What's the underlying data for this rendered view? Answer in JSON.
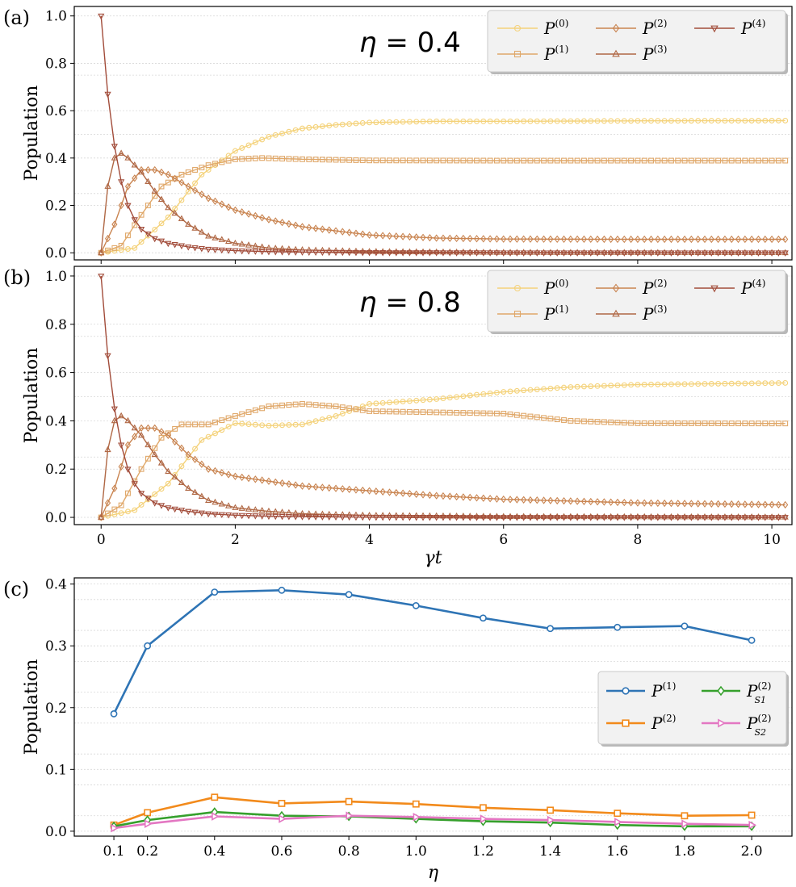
{
  "chart_data": [
    {
      "type": "line",
      "panel_label": "(a)",
      "annotation_symbol": "η",
      "annotation_value": "= 0.4",
      "ylabel": "Population",
      "xlabel": "",
      "xlim": [
        -0.4,
        10.3
      ],
      "ylim": [
        -0.03,
        1.04
      ],
      "xticks": [
        0,
        2,
        4,
        6,
        8,
        10
      ],
      "yticks": [
        "0.0",
        "0.2",
        "0.4",
        "0.6",
        "0.8",
        "1.0"
      ],
      "grid": "y-dotted",
      "legend_position": "top-right",
      "series": [
        {
          "name": "P",
          "sup": "(0)",
          "color": "#f4d27a",
          "marker": "circle",
          "t": [
            0,
            0.5,
            1,
            1.5,
            2,
            2.5,
            3,
            3.5,
            4,
            5,
            6,
            8,
            10.2
          ],
          "v": [
            0,
            0.02,
            0.15,
            0.33,
            0.43,
            0.49,
            0.525,
            0.54,
            0.55,
            0.555,
            0.555,
            0.557,
            0.558
          ]
        },
        {
          "name": "P",
          "sup": "(1)",
          "color": "#e0a86a",
          "marker": "square",
          "t": [
            0,
            0.3,
            0.6,
            0.9,
            1.2,
            1.6,
            2,
            2.4,
            3,
            4,
            6,
            8,
            10.2
          ],
          "v": [
            0,
            0.03,
            0.16,
            0.28,
            0.33,
            0.37,
            0.395,
            0.4,
            0.395,
            0.39,
            0.389,
            0.389,
            0.389
          ]
        },
        {
          "name": "P",
          "sup": "(2)",
          "color": "#c98450",
          "marker": "diamond",
          "t": [
            0,
            0.2,
            0.4,
            0.6,
            0.8,
            1,
            1.3,
            1.6,
            2,
            2.5,
            3,
            4,
            5,
            6,
            8,
            10.2
          ],
          "v": [
            0,
            0.12,
            0.28,
            0.35,
            0.35,
            0.33,
            0.28,
            0.23,
            0.18,
            0.14,
            0.11,
            0.075,
            0.062,
            0.058,
            0.057,
            0.057
          ]
        },
        {
          "name": "P",
          "sup": "(3)",
          "color": "#b06845",
          "marker": "triangle-up",
          "t": [
            0,
            0.1,
            0.2,
            0.3,
            0.4,
            0.6,
            0.8,
            1,
            1.3,
            1.6,
            2,
            2.5,
            3,
            4,
            6,
            10.2
          ],
          "v": [
            0,
            0.28,
            0.4,
            0.42,
            0.4,
            0.34,
            0.26,
            0.19,
            0.12,
            0.07,
            0.04,
            0.02,
            0.012,
            0.005,
            0.001,
            0
          ]
        },
        {
          "name": "P",
          "sup": "(4)",
          "color": "#a24c3a",
          "marker": "triangle-down",
          "t": [
            0,
            0.1,
            0.2,
            0.3,
            0.4,
            0.5,
            0.6,
            0.8,
            1,
            1.3,
            1.6,
            2,
            2.5,
            3,
            4,
            6,
            10.2
          ],
          "v": [
            1,
            0.67,
            0.45,
            0.3,
            0.2,
            0.14,
            0.1,
            0.06,
            0.04,
            0.025,
            0.015,
            0.009,
            0.005,
            0.003,
            0.001,
            0,
            0
          ]
        }
      ]
    },
    {
      "type": "line",
      "panel_label": "(b)",
      "annotation_symbol": "η",
      "annotation_value": "= 0.8",
      "ylabel": "Population",
      "xlabel": "γt",
      "xlim": [
        -0.4,
        10.3
      ],
      "ylim": [
        -0.03,
        1.04
      ],
      "xticks": [
        0,
        2,
        4,
        6,
        8,
        10
      ],
      "yticks": [
        "0.0",
        "0.2",
        "0.4",
        "0.6",
        "0.8",
        "1.0"
      ],
      "grid": "y-dotted",
      "legend_position": "top-right",
      "series": [
        {
          "name": "P",
          "sup": "(0)",
          "color": "#f4d27a",
          "marker": "circle",
          "t": [
            0,
            0.5,
            1,
            1.5,
            2,
            2.5,
            3,
            3.5,
            4,
            5,
            6,
            7,
            8,
            10.2
          ],
          "v": [
            0,
            0.03,
            0.14,
            0.32,
            0.39,
            0.38,
            0.385,
            0.42,
            0.47,
            0.49,
            0.52,
            0.54,
            0.55,
            0.557
          ]
        },
        {
          "name": "P",
          "sup": "(1)",
          "color": "#e0a86a",
          "marker": "square",
          "t": [
            0,
            0.3,
            0.6,
            0.9,
            1.2,
            1.6,
            2,
            2.5,
            3,
            3.5,
            4,
            5,
            6,
            7,
            8,
            10.2
          ],
          "v": [
            0,
            0.05,
            0.2,
            0.33,
            0.385,
            0.385,
            0.42,
            0.46,
            0.47,
            0.46,
            0.44,
            0.435,
            0.43,
            0.4,
            0.39,
            0.389
          ]
        },
        {
          "name": "P",
          "sup": "(2)",
          "color": "#c98450",
          "marker": "diamond",
          "t": [
            0,
            0.2,
            0.4,
            0.6,
            0.8,
            1,
            1.3,
            1.6,
            2,
            2.5,
            3,
            4,
            5,
            6,
            8,
            10.2
          ],
          "v": [
            0,
            0.12,
            0.3,
            0.37,
            0.37,
            0.34,
            0.26,
            0.2,
            0.17,
            0.15,
            0.13,
            0.11,
            0.09,
            0.075,
            0.06,
            0.052
          ]
        },
        {
          "name": "P",
          "sup": "(3)",
          "color": "#b06845",
          "marker": "triangle-up",
          "t": [
            0,
            0.1,
            0.2,
            0.3,
            0.4,
            0.6,
            0.8,
            1,
            1.3,
            1.6,
            2,
            2.5,
            3,
            4,
            6,
            10.2
          ],
          "v": [
            0,
            0.28,
            0.4,
            0.42,
            0.4,
            0.34,
            0.26,
            0.19,
            0.12,
            0.07,
            0.04,
            0.025,
            0.015,
            0.008,
            0.003,
            0.001
          ]
        },
        {
          "name": "P",
          "sup": "(4)",
          "color": "#a24c3a",
          "marker": "triangle-down",
          "t": [
            0,
            0.1,
            0.2,
            0.3,
            0.4,
            0.5,
            0.6,
            0.8,
            1,
            1.3,
            1.6,
            2,
            2.5,
            3,
            4,
            6,
            10.2
          ],
          "v": [
            1,
            0.67,
            0.45,
            0.3,
            0.2,
            0.14,
            0.1,
            0.06,
            0.04,
            0.025,
            0.015,
            0.009,
            0.005,
            0.003,
            0.001,
            0,
            0
          ]
        }
      ]
    },
    {
      "type": "line",
      "panel_label": "(c)",
      "ylabel": "Population",
      "xlabel": "η",
      "ylim": [
        -0.008,
        0.41
      ],
      "x": [
        0.1,
        0.2,
        0.4,
        0.6,
        0.8,
        1.0,
        1.2,
        1.4,
        1.6,
        1.8,
        2.0
      ],
      "xticks": [
        "0.1",
        "0.2",
        "0.4",
        "0.6",
        "0.8",
        "1.0",
        "1.2",
        "1.4",
        "1.6",
        "1.8",
        "2.0"
      ],
      "yticks": [
        "0.0",
        "0.1",
        "0.2",
        "0.3",
        "0.4"
      ],
      "grid": "y-dotted",
      "legend_position": "center-right",
      "series": [
        {
          "name": "P",
          "sup": "(1)",
          "sub": "",
          "color": "#2e74b5",
          "marker": "circle",
          "values": [
            0.19,
            0.3,
            0.387,
            0.39,
            0.383,
            0.365,
            0.345,
            0.328,
            0.33,
            0.332,
            0.309
          ]
        },
        {
          "name": "P",
          "sup": "(2)",
          "sub": "",
          "color": "#f28a1b",
          "marker": "square",
          "values": [
            0.01,
            0.03,
            0.055,
            0.045,
            0.048,
            0.044,
            0.038,
            0.034,
            0.029,
            0.025,
            0.026
          ]
        },
        {
          "name": "P",
          "sup": "(2)",
          "sub": "S1",
          "color": "#35a02c",
          "marker": "diamond",
          "values": [
            0.008,
            0.018,
            0.031,
            0.025,
            0.024,
            0.02,
            0.016,
            0.014,
            0.01,
            0.008,
            0.008
          ]
        },
        {
          "name": "P",
          "sup": "(2)",
          "sub": "S2",
          "color": "#e377c2",
          "marker": "triangle-right",
          "values": [
            0.005,
            0.012,
            0.024,
            0.02,
            0.025,
            0.023,
            0.02,
            0.018,
            0.015,
            0.012,
            0.01
          ]
        }
      ]
    }
  ]
}
